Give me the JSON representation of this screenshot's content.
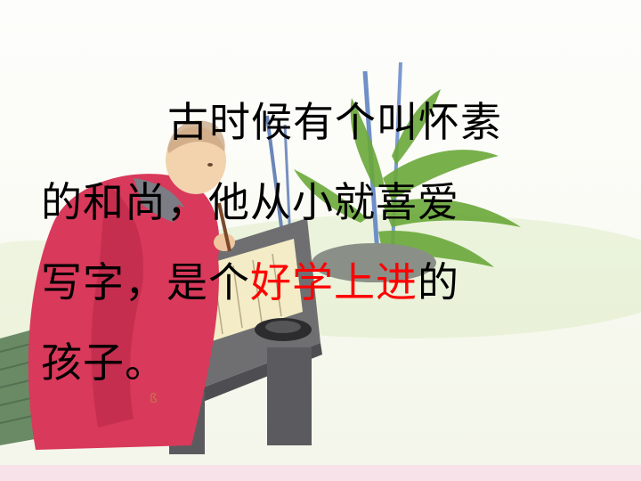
{
  "passage": {
    "line1": "古时候有个叫怀素",
    "line2": "的和尚，他从小就喜爱",
    "line3_before": "写字，是个",
    "line3_highlight": "好学上进",
    "line3_after": "的",
    "line4": "孩子。"
  },
  "colors": {
    "text": "#000000",
    "highlight": "#ff0000",
    "robe": "#d9395a",
    "leaves": "#6aa83a",
    "bamboo": "#6e8fc8",
    "bottom_band": "#f7e2ea"
  }
}
